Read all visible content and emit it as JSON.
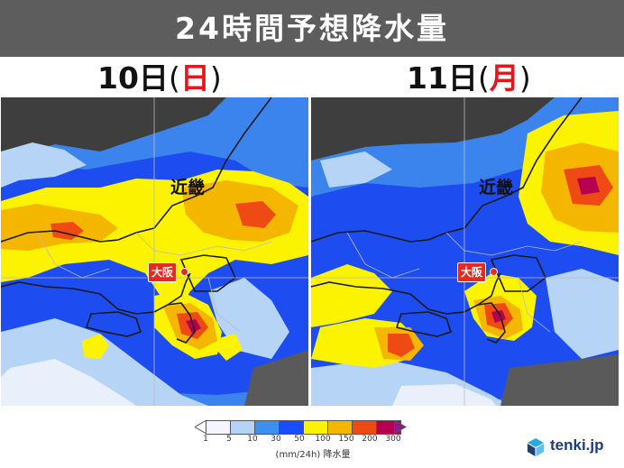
{
  "header": {
    "title": "24時間予想降水量"
  },
  "panels": [
    {
      "day": "10日",
      "paren_open": "(",
      "dow": "日",
      "paren_close": ")",
      "region": "近畿",
      "city": "大阪"
    },
    {
      "day": "11日",
      "paren_open": "(",
      "dow": "月",
      "paren_close": ")",
      "region": "近畿",
      "city": "大阪"
    }
  ],
  "legend": {
    "ticks": [
      "1",
      "5",
      "10",
      "30",
      "50",
      "100",
      "150",
      "200",
      "300"
    ],
    "colors": [
      "#f5f5ff",
      "#b5d3f5",
      "#3d8ff0",
      "#1a4cff",
      "#fbf300",
      "#f5b600",
      "#f04a14",
      "#b5004f"
    ],
    "unit": "(mm/24h) 降水量"
  },
  "brand": {
    "name": "tenki.jp",
    "icon": "tenki-logo-icon"
  },
  "colors": {
    "header_bg": "#5d5d5d",
    "dow_red": "#e8141b",
    "sea": "#3e3e3e"
  }
}
